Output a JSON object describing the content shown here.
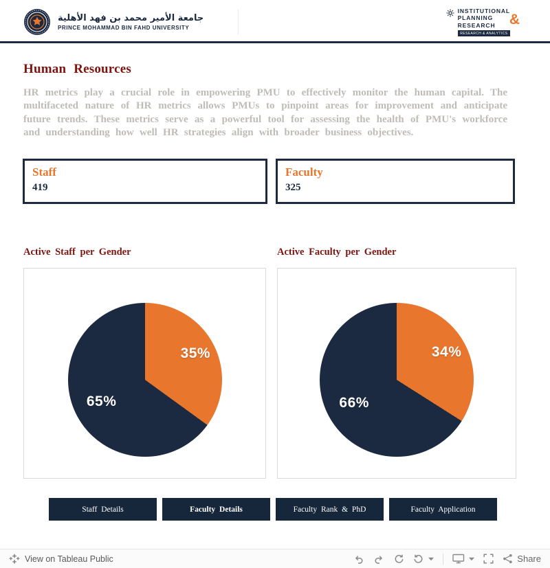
{
  "colors": {
    "navy": "#1B2A41",
    "orange": "#E8762D",
    "maroon": "#7E1410",
    "intro_gray": "#BFBCB8"
  },
  "header": {
    "university_name_ar": "جامعة الأمير محمد بن فهد الأهلية",
    "university_name_en": "PRINCE MOHAMMAD BIN FAHD UNIVERSITY",
    "ipr": {
      "word1": "INSTITUTIONAL",
      "word2": "PLANNING",
      "word3": "RESEARCH",
      "ampersand": "&",
      "banner": "RESEARCH & ANALYTICS"
    }
  },
  "page": {
    "title": "Human Resources",
    "intro": "HR metrics play a crucial role in empowering PMU to effectively monitor the human capital. The multifaceted nature of HR metrics allows PMUs to pinpoint areas for improvement and anticipate future trends. These metrics serve as a powerful tool for assessing the health of PMU's workforce and understanding how well HR strategies align with broader business objectives."
  },
  "kpis": [
    {
      "label": "Staff",
      "value": "419"
    },
    {
      "label": "Faculty",
      "value": "325"
    }
  ],
  "chart_data": [
    {
      "type": "pie",
      "title": "Active Staff per Gender",
      "legend": "off",
      "slices": [
        {
          "label": "35%",
          "value": 35,
          "color": "#E8762D"
        },
        {
          "label": "65%",
          "value": 65,
          "color": "#1B2A41"
        }
      ]
    },
    {
      "type": "pie",
      "title": "Active Faculty per Gender",
      "legend": "off",
      "slices": [
        {
          "label": "34%",
          "value": 34,
          "color": "#E8762D"
        },
        {
          "label": "66%",
          "value": 66,
          "color": "#1B2A41"
        }
      ]
    }
  ],
  "nav": {
    "buttons": [
      {
        "label": "Staff Details",
        "active": false
      },
      {
        "label": "Faculty Details",
        "active": true
      },
      {
        "label": "Faculty Rank & PhD",
        "active": false
      },
      {
        "label": "Faculty Application",
        "active": false
      }
    ]
  },
  "toolbar": {
    "view_label": "View on Tableau Public",
    "share_label": "Share"
  }
}
